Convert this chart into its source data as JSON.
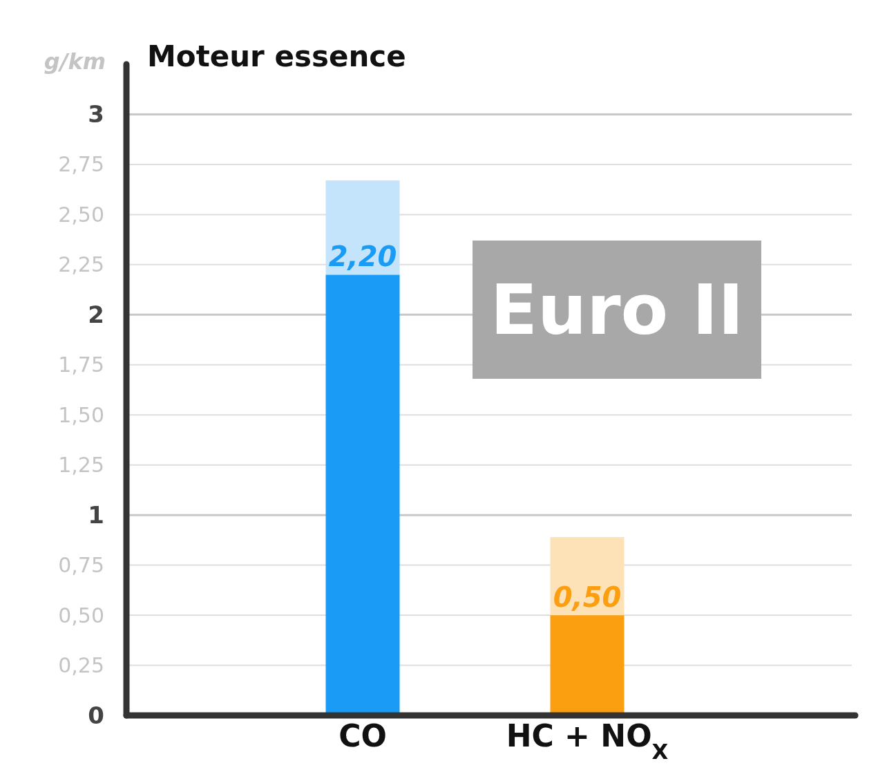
{
  "chart_data": {
    "type": "bar",
    "title": "Moteur essence",
    "ylabel": "g/km",
    "categories": [
      "CO",
      "HC + NO$_{X}$"
    ],
    "stacked": true,
    "series": [
      {
        "colors": [
          "#1a9bf5",
          "#fb9e10"
        ],
        "values": [
          2.2,
          0.5
        ],
        "value_labels": [
          "2,20",
          "0,50"
        ]
      },
      {
        "colors": [
          "#c4e4fb",
          "#fde2b8"
        ],
        "values": [
          0.47,
          0.39
        ]
      }
    ],
    "ylim": [
      0,
      3.25
    ],
    "yticks": [
      0,
      {
        "value": 0.25,
        "label": "0,25"
      },
      {
        "value": 0.5,
        "label": "0,50"
      },
      {
        "value": 0.75,
        "label": "0,75"
      },
      1,
      {
        "value": 1.25,
        "label": "1,25"
      },
      {
        "value": 1.5,
        "label": "1,50"
      },
      {
        "value": 1.75,
        "label": "1,75"
      },
      2,
      {
        "value": 2.25,
        "label": "2,25"
      },
      {
        "value": 2.5,
        "label": "2,50"
      },
      {
        "value": 2.75,
        "label": "2,75"
      },
      3
    ],
    "grid": "y",
    "annotations": [
      "Euro II"
    ]
  }
}
